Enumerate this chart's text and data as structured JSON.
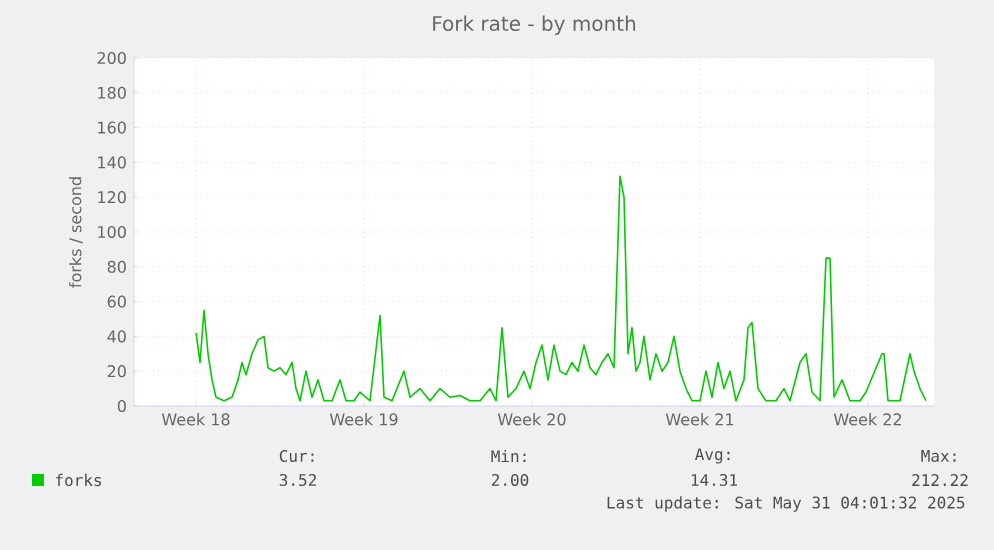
{
  "chart_data": {
    "type": "line",
    "title": "Fork rate - by month",
    "ylabel": "forks / second",
    "xlim": [
      "2025-04-27T20:00",
      "2025-05-31T04:00"
    ],
    "xticks": [
      {
        "value": "2025-04-30T10:00",
        "label": "Week 18"
      },
      {
        "value": "2025-05-07T10:00",
        "label": "Week 19"
      },
      {
        "value": "2025-05-14T10:00",
        "label": "Week 20"
      },
      {
        "value": "2025-05-21T10:00",
        "label": "Week 21"
      },
      {
        "value": "2025-05-28T10:00",
        "label": "Week 22"
      }
    ],
    "ylim": [
      0,
      200
    ],
    "yticks": [
      0,
      20,
      40,
      60,
      80,
      100,
      120,
      140,
      160,
      180,
      200
    ],
    "grid": true,
    "legend": "bottom left",
    "series": [
      {
        "name": "forks",
        "color": "#00cc00",
        "x": [
          "2025-04-30T10:00",
          "2025-04-30T14:00",
          "2025-04-30T18:00",
          "2025-04-30T22:00",
          "2025-05-01T02:00",
          "2025-05-01T06:00",
          "2025-05-01T14:00",
          "2025-05-01T22:00",
          "2025-05-02T04:00",
          "2025-05-02T08:00",
          "2025-05-02T12:00",
          "2025-05-02T18:00",
          "2025-05-03T00:00",
          "2025-05-03T06:00",
          "2025-05-03T10:00",
          "2025-05-03T16:00",
          "2025-05-03T22:00",
          "2025-05-04T04:00",
          "2025-05-04T10:00",
          "2025-05-04T14:00",
          "2025-05-04T18:00",
          "2025-05-05T00:00",
          "2025-05-05T06:00",
          "2025-05-05T12:00",
          "2025-05-05T18:00",
          "2025-05-06T02:00",
          "2025-05-06T10:00",
          "2025-05-06T16:00",
          "2025-05-07T00:00",
          "2025-05-07T06:00",
          "2025-05-07T16:00",
          "2025-05-08T02:00",
          "2025-05-08T06:00",
          "2025-05-08T14:00",
          "2025-05-09T02:00",
          "2025-05-09T08:00",
          "2025-05-09T18:00",
          "2025-05-10T04:00",
          "2025-05-10T14:00",
          "2025-05-11T00:00",
          "2025-05-11T10:00",
          "2025-05-11T20:00",
          "2025-05-12T06:00",
          "2025-05-12T16:00",
          "2025-05-12T22:00",
          "2025-05-13T04:00",
          "2025-05-13T10:00",
          "2025-05-13T18:00",
          "2025-05-14T02:00",
          "2025-05-14T08:00",
          "2025-05-14T14:00",
          "2025-05-14T20:00",
          "2025-05-15T02:00",
          "2025-05-15T08:00",
          "2025-05-15T14:00",
          "2025-05-15T20:00",
          "2025-05-16T02:00",
          "2025-05-16T08:00",
          "2025-05-16T14:00",
          "2025-05-16T20:00",
          "2025-05-17T02:00",
          "2025-05-17T08:00",
          "2025-05-17T14:00",
          "2025-05-17T20:00",
          "2025-05-18T02:00",
          "2025-05-18T06:00",
          "2025-05-18T10:00",
          "2025-05-18T14:00",
          "2025-05-18T18:00",
          "2025-05-18T22:00",
          "2025-05-19T02:00",
          "2025-05-19T08:00",
          "2025-05-19T14:00",
          "2025-05-19T20:00",
          "2025-05-20T02:00",
          "2025-05-20T08:00",
          "2025-05-20T14:00",
          "2025-05-20T20:00",
          "2025-05-21T02:00",
          "2025-05-21T10:00",
          "2025-05-21T16:00",
          "2025-05-21T22:00",
          "2025-05-22T04:00",
          "2025-05-22T10:00",
          "2025-05-22T16:00",
          "2025-05-22T22:00",
          "2025-05-23T06:00",
          "2025-05-23T10:00",
          "2025-05-23T14:00",
          "2025-05-23T20:00",
          "2025-05-24T04:00",
          "2025-05-24T14:00",
          "2025-05-24T22:00",
          "2025-05-25T04:00",
          "2025-05-25T14:00",
          "2025-05-25T20:00",
          "2025-05-26T02:00",
          "2025-05-26T10:00",
          "2025-05-26T16:00",
          "2025-05-26T20:00",
          "2025-05-27T00:00",
          "2025-05-27T08:00",
          "2025-05-27T16:00",
          "2025-05-28T02:00",
          "2025-05-28T08:00",
          "2025-05-29T00:00",
          "2025-05-29T02:00",
          "2025-05-29T06:00",
          "2025-05-29T18:00",
          "2025-05-30T04:00",
          "2025-05-30T08:00",
          "2025-05-30T14:00",
          "2025-05-30T20:00"
        ],
        "values": [
          42,
          25,
          55,
          30,
          15,
          5,
          3,
          5,
          15,
          25,
          18,
          30,
          38,
          40,
          22,
          20,
          22,
          18,
          25,
          10,
          3,
          20,
          5,
          15,
          3,
          3,
          15,
          3,
          3,
          8,
          3,
          52,
          5,
          3,
          20,
          5,
          10,
          3,
          10,
          5,
          6,
          3,
          3,
          10,
          3,
          45,
          5,
          10,
          20,
          10,
          25,
          35,
          15,
          35,
          20,
          18,
          25,
          20,
          35,
          22,
          18,
          25,
          30,
          22,
          132,
          120,
          30,
          45,
          20,
          25,
          40,
          15,
          30,
          20,
          25,
          40,
          20,
          10,
          3,
          3,
          20,
          5,
          25,
          10,
          20,
          3,
          15,
          45,
          48,
          10,
          3,
          3,
          10,
          3,
          25,
          30,
          8,
          3,
          85,
          85,
          5,
          15,
          3,
          3,
          8,
          30,
          30,
          3,
          3,
          30,
          20,
          10,
          3
        ]
      }
    ],
    "annotations": [
      "Cur:",
      "Min:",
      "Avg:",
      "Max:",
      "3.52",
      "2.00",
      "14.31",
      "212.22",
      "Last update: Sat May 31 04:01:32 2025"
    ]
  }
}
